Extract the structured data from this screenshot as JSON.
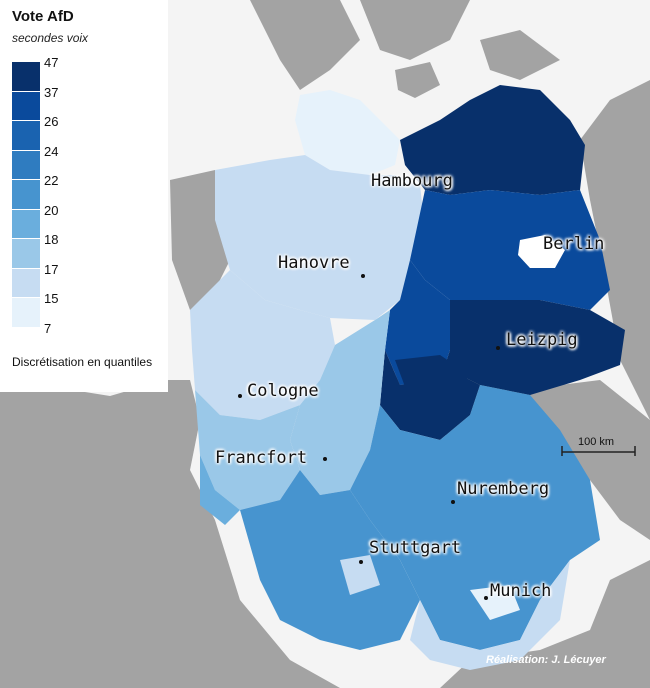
{
  "legend": {
    "title": "Vote AfD",
    "subtitle": "secondes voix",
    "method": "Discrétisation en quantiles",
    "breaks": [
      "47",
      "37",
      "26",
      "24",
      "22",
      "20",
      "18",
      "17",
      "15",
      "7"
    ],
    "classes": [
      "#08306b",
      "#0a4a9c",
      "#1a63b0",
      "#2f7cc0",
      "#4794cf",
      "#6aaedd",
      "#9ac8e8",
      "#c6dcf2",
      "#e6f2fb"
    ]
  },
  "cities": [
    {
      "name": "Hambourg"
    },
    {
      "name": "Berlin"
    },
    {
      "name": "Hanovre"
    },
    {
      "name": "Leizpig"
    },
    {
      "name": "Cologne"
    },
    {
      "name": "Francfort"
    },
    {
      "name": "Nuremberg"
    },
    {
      "name": "Stuttgart"
    },
    {
      "name": "Munich"
    }
  ],
  "scale": {
    "label": "100 km"
  },
  "credit": "Réalisation: J. Lécuyer",
  "colors": {
    "sea": "#f4f4f4",
    "land_outside": "#a3a3a3",
    "border": "#ffffff"
  }
}
